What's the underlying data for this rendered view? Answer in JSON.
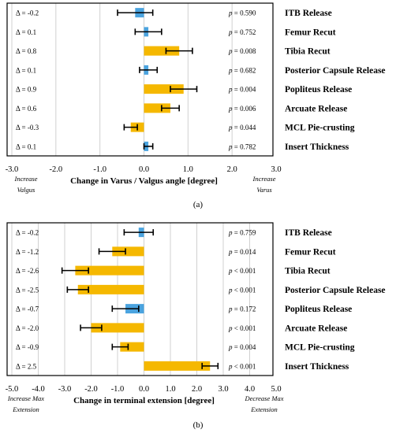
{
  "chart_data": [
    {
      "type": "bar",
      "panel_label": "(a)",
      "xlabel": "Change in Varus / Valgus angle [degree]",
      "xlim": [
        -3.0,
        3.0
      ],
      "xticks": [
        "-3.0",
        "-2.0",
        "-1.0",
        "0.0",
        "1.0",
        "2.0",
        "3.0"
      ],
      "left_note": [
        "Increase",
        "Valgus"
      ],
      "right_note": [
        "Increase",
        "Varus"
      ],
      "grid": true,
      "orientation": "horizontal",
      "categories": [
        "ITB Release",
        "Femur Recut",
        "Tibia Recut",
        "Posterior Capsule Release",
        "Popliteus Release",
        "Arcuate Release",
        "MCL Pie-crusting",
        "Insert Thickness"
      ],
      "deltas": [
        "Δ = -0.2",
        "Δ = 0.1",
        "Δ = 0.8",
        "Δ = 0.1",
        "Δ = 0.9",
        "Δ = 0.6",
        "Δ = -0.3",
        "Δ = 0.1"
      ],
      "pvalues": [
        "p = 0.590",
        "p = 0.752",
        "p = 0.008",
        "p = 0.682",
        "p = 0.004",
        "p = 0.006",
        "p = 0.044",
        "p = 0.782"
      ],
      "values": [
        -0.2,
        0.1,
        0.8,
        0.1,
        0.9,
        0.6,
        -0.3,
        0.1
      ],
      "errors": [
        0.4,
        0.3,
        0.3,
        0.2,
        0.3,
        0.2,
        0.15,
        0.1
      ],
      "colors": [
        "#4aa3df",
        "#4aa3df",
        "#f5b800",
        "#4aa3df",
        "#f5b800",
        "#f5b800",
        "#f5b800",
        "#4aa3df"
      ]
    },
    {
      "type": "bar",
      "panel_label": "(b)",
      "xlabel": "Change in terminal extension [degree]",
      "xlim": [
        -5.0,
        5.0
      ],
      "xticks": [
        "-5.0",
        "-4.0",
        "-3.0",
        "-2.0",
        "-1.0",
        "0.0",
        "1.0",
        "2.0",
        "3.0",
        "4.0",
        "5.0"
      ],
      "left_note": [
        "Increase Max",
        "Extension"
      ],
      "right_note": [
        "Decrease Max",
        "Extension"
      ],
      "grid": true,
      "orientation": "horizontal",
      "categories": [
        "ITB Release",
        "Femur Recut",
        "Tibia Recut",
        "Posterior Capsule Release",
        "Popliteus Release",
        "Arcuate Release",
        "MCL Pie-crusting",
        "Insert Thickness"
      ],
      "deltas": [
        "Δ = -0.2",
        "Δ = -1.2",
        "Δ = -2.6",
        "Δ = -2.5",
        "Δ = -0.7",
        "Δ = -2.0",
        "Δ = -0.9",
        "Δ = 2.5"
      ],
      "pvalues": [
        "p = 0.759",
        "p = 0.014",
        "p < 0.001",
        "p < 0.001",
        "p = 0.172",
        "p < 0.001",
        "p = 0.004",
        "p < 0.001"
      ],
      "values": [
        -0.2,
        -1.2,
        -2.6,
        -2.5,
        -0.7,
        -2.0,
        -0.9,
        2.5
      ],
      "errors": [
        0.55,
        0.5,
        0.5,
        0.4,
        0.5,
        0.4,
        0.3,
        0.3
      ],
      "colors": [
        "#4aa3df",
        "#f5b800",
        "#f5b800",
        "#f5b800",
        "#4aa3df",
        "#f5b800",
        "#f5b800",
        "#f5b800"
      ]
    }
  ]
}
